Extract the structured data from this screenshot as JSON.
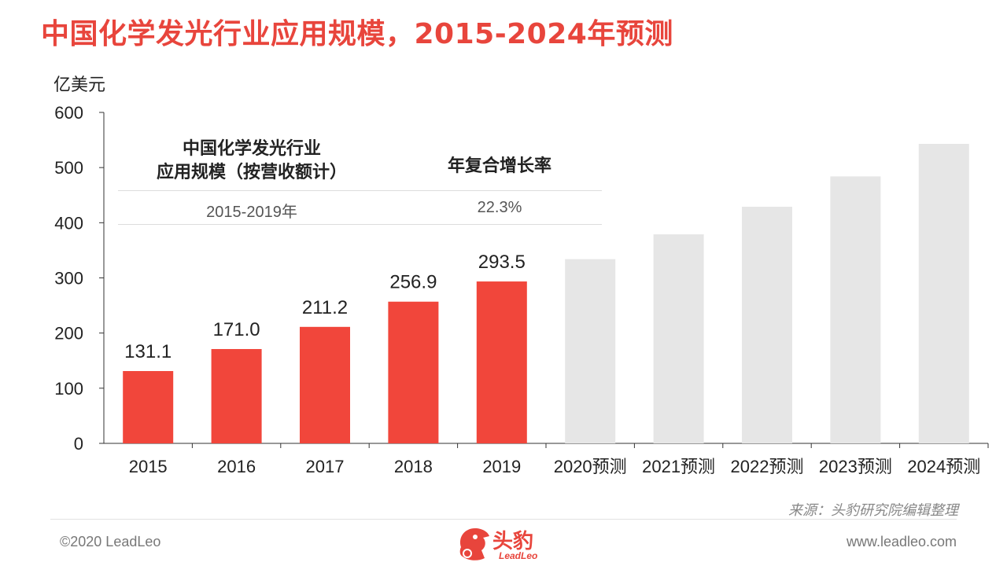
{
  "title": "中国化学发光行业应用规模，2015-2024年预测",
  "unit_label": "亿美元",
  "cagr_table": {
    "header_scale": "中国化学发光行业\n应用规模（按营收额计）",
    "header_rate": "年复合增长率",
    "period": "2015-2019年",
    "rate": "22.3%"
  },
  "source": "来源：头豹研究院编辑整理",
  "footer": {
    "copyright": "©2020 LeadLeo",
    "website": "www.leadleo.com",
    "logo_text": "头豹",
    "logo_sub": "LeadLeo"
  },
  "colors": {
    "actual": "#f1463b",
    "forecast": "#e6e6e6",
    "title": "#e8453c"
  },
  "chart_data": {
    "type": "bar",
    "title": "中国化学发光行业应用规模，2015-2024年预测",
    "ylabel": "亿美元",
    "xlabel": "",
    "ylim": [
      0,
      600
    ],
    "yticks": [
      0,
      100,
      200,
      300,
      400,
      500,
      600
    ],
    "grid": false,
    "categories": [
      "2015",
      "2016",
      "2017",
      "2018",
      "2019",
      "2020预测",
      "2021预测",
      "2022预测",
      "2023预测",
      "2024预测"
    ],
    "values": [
      131.1,
      171.0,
      211.2,
      256.9,
      293.5,
      334,
      379,
      429,
      484,
      543
    ],
    "forecast": [
      false,
      false,
      false,
      false,
      false,
      true,
      true,
      true,
      true,
      true
    ],
    "data_labels": [
      "131.1",
      "171.0",
      "211.2",
      "256.9",
      "293.5",
      "",
      "",
      "",
      "",
      ""
    ]
  }
}
